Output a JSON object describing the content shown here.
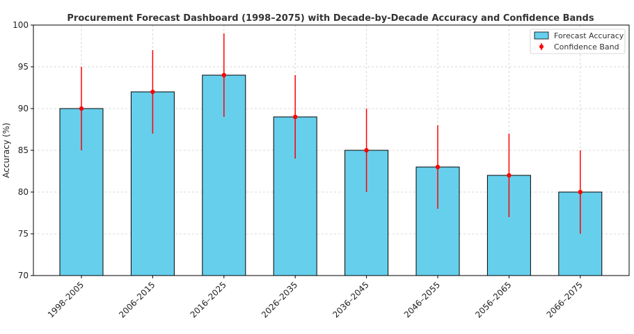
{
  "chart_data": {
    "type": "bar",
    "title": "Procurement Forecast Dashboard (1998–2075) with Decade-by-Decade Accuracy and Confidence Bands",
    "xlabel": "",
    "ylabel": "Accuracy (%)",
    "ylim": [
      70,
      100
    ],
    "yticks": [
      70,
      75,
      80,
      85,
      90,
      95,
      100
    ],
    "grid": true,
    "legend_position": "top-right",
    "categories": [
      "1998–2005",
      "2006–2015",
      "2016–2025",
      "2026–2035",
      "2036–2045",
      "2046–2055",
      "2056–2065",
      "2066–2075"
    ],
    "series": [
      {
        "name": "Forecast Accuracy",
        "values": [
          90,
          92,
          94,
          89,
          85,
          83,
          82,
          80
        ],
        "color": "#66cfec"
      },
      {
        "name": "Confidence Band",
        "type": "errorbar",
        "values": [
          90,
          92,
          94,
          89,
          85,
          83,
          82,
          80
        ],
        "error": [
          5,
          5,
          5,
          5,
          5,
          5,
          5,
          5
        ],
        "color": "#ff0000"
      }
    ]
  }
}
